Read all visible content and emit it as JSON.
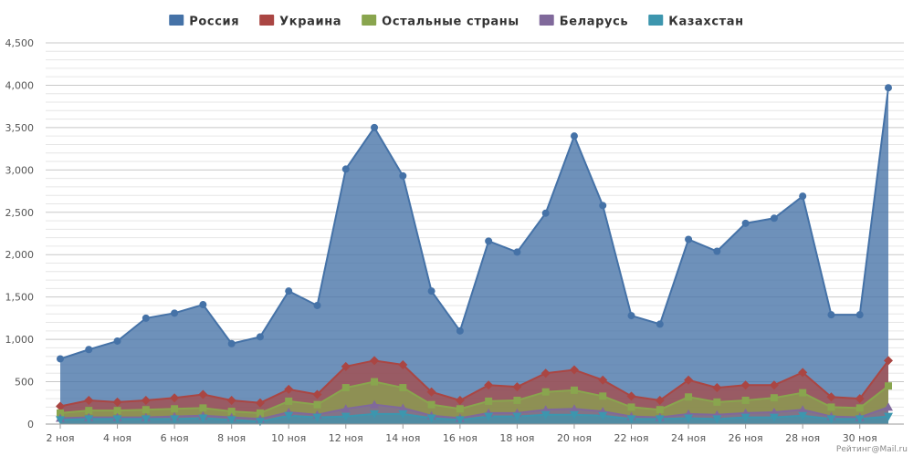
{
  "chart_data": {
    "type": "area",
    "stacked": false,
    "title": "",
    "xlabel": "",
    "ylabel": "",
    "ylim": [
      0,
      4500
    ],
    "y_ticks": [
      "0",
      "500",
      "1,000",
      "1,500",
      "2,000",
      "2,500",
      "3,000",
      "3,500",
      "4,000",
      "4,500"
    ],
    "x_ticks": [
      "2 ноя",
      "4 ноя",
      "6 ноя",
      "8 ноя",
      "10 ноя",
      "12 ноя",
      "14 ноя",
      "16 ноя",
      "18 ноя",
      "20 ноя",
      "22 ноя",
      "24 ноя",
      "26 ноя",
      "28 ноя",
      "30 ноя"
    ],
    "grid": true,
    "legend_position": "top-center",
    "x": [
      2,
      3,
      4,
      5,
      6,
      7,
      8,
      9,
      10,
      11,
      12,
      13,
      14,
      15,
      16,
      17,
      18,
      19,
      20,
      21,
      22,
      23,
      24,
      25,
      26,
      27,
      28,
      29,
      30,
      31
    ],
    "series": [
      {
        "name": "Россия",
        "color": "#4572a7",
        "marker": "circle",
        "values": [
          770,
          880,
          980,
          1250,
          1310,
          1410,
          950,
          1030,
          1570,
          1400,
          3010,
          3500,
          2930,
          1570,
          1100,
          2160,
          2030,
          2490,
          3400,
          2580,
          1280,
          1180,
          2180,
          2040,
          2370,
          2430,
          2690,
          1290,
          1290,
          3970
        ]
      },
      {
        "name": "Украина",
        "color": "#aa4643",
        "marker": "diamond",
        "values": [
          210,
          280,
          260,
          280,
          310,
          350,
          280,
          250,
          410,
          350,
          680,
          750,
          700,
          380,
          280,
          460,
          440,
          600,
          640,
          520,
          330,
          280,
          520,
          430,
          460,
          460,
          610,
          320,
          300,
          750
        ]
      },
      {
        "name": "Остальные страны",
        "color": "#89a54e",
        "marker": "square",
        "values": [
          130,
          160,
          160,
          170,
          180,
          190,
          150,
          130,
          270,
          230,
          430,
          500,
          430,
          230,
          180,
          270,
          280,
          380,
          400,
          330,
          200,
          170,
          320,
          260,
          280,
          310,
          370,
          200,
          190,
          450
        ]
      },
      {
        "name": "Беларусь",
        "color": "#80699b",
        "marker": "triangle",
        "values": [
          70,
          80,
          80,
          80,
          90,
          100,
          80,
          60,
          140,
          110,
          180,
          230,
          190,
          100,
          70,
          130,
          130,
          170,
          180,
          150,
          90,
          80,
          120,
          110,
          130,
          140,
          170,
          90,
          80,
          200
        ]
      },
      {
        "name": "Казахстан",
        "color": "#3d96ae",
        "marker": "triangle-down",
        "values": [
          50,
          60,
          60,
          60,
          60,
          70,
          50,
          30,
          100,
          80,
          90,
          120,
          120,
          70,
          50,
          90,
          90,
          110,
          110,
          100,
          60,
          60,
          70,
          60,
          80,
          80,
          100,
          60,
          60,
          90
        ]
      }
    ]
  },
  "watermark": "Рейтинг@Mail.ru"
}
